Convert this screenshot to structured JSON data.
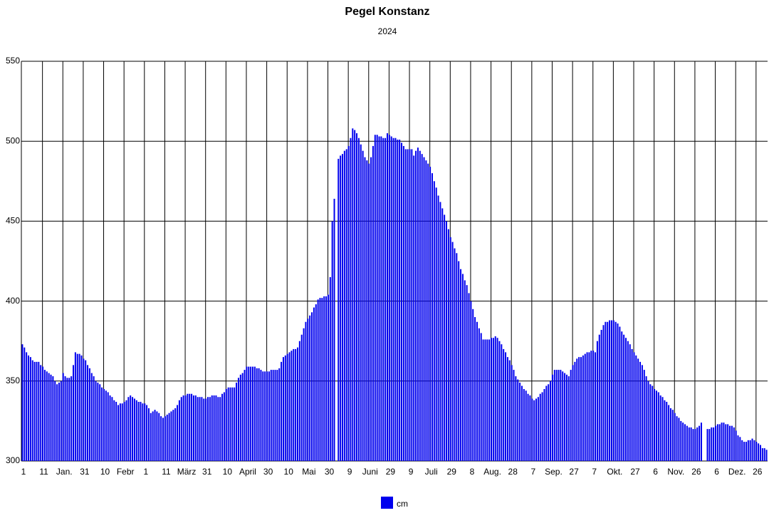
{
  "chart_data": {
    "type": "bar",
    "title": "Pegel Konstanz",
    "subtitle": "2024",
    "categories": [
      "1",
      null,
      null,
      null,
      null,
      null,
      null,
      null,
      null,
      null,
      "11",
      null,
      null,
      null,
      null,
      null,
      null,
      null,
      null,
      null,
      "Jan.",
      null,
      null,
      null,
      null,
      null,
      null,
      null,
      null,
      null,
      "31",
      null,
      null,
      null,
      null,
      null,
      null,
      null,
      null,
      null,
      "10",
      null,
      null,
      null,
      null,
      null,
      null,
      null,
      null,
      null,
      "Febr",
      null,
      null,
      null,
      null,
      null,
      null,
      null,
      null,
      null,
      "1",
      null,
      null,
      null,
      null,
      null,
      null,
      null,
      null,
      null,
      "11",
      null,
      null,
      null,
      null,
      null,
      null,
      null,
      null,
      null,
      "März",
      null,
      null,
      null,
      null,
      null,
      null,
      null,
      null,
      null,
      "31",
      null,
      null,
      null,
      null,
      null,
      null,
      null,
      null,
      null,
      "10",
      null,
      null,
      null,
      null,
      null,
      null,
      null,
      null,
      null,
      "April",
      null,
      null,
      null,
      null,
      null,
      null,
      null,
      null,
      null,
      "30",
      null,
      null,
      null,
      null,
      null,
      null,
      null,
      null,
      null,
      "10",
      null,
      null,
      null,
      null,
      null,
      null,
      null,
      null,
      null,
      "Mai",
      null,
      null,
      null,
      null,
      null,
      null,
      null,
      null,
      null,
      "30",
      null,
      null,
      null,
      null,
      null,
      null,
      null,
      null,
      null,
      "9",
      null,
      null,
      null,
      null,
      null,
      null,
      null,
      null,
      null,
      "Juni",
      null,
      null,
      null,
      null,
      null,
      null,
      null,
      null,
      null,
      "29",
      null,
      null,
      null,
      null,
      null,
      null,
      null,
      null,
      null,
      "9",
      null,
      null,
      null,
      null,
      null,
      null,
      null,
      null,
      null,
      "Juli",
      null,
      null,
      null,
      null,
      null,
      null,
      null,
      null,
      null,
      "29",
      null,
      null,
      null,
      null,
      null,
      null,
      null,
      null,
      null,
      "8",
      null,
      null,
      null,
      null,
      null,
      null,
      null,
      null,
      null,
      "Aug.",
      null,
      null,
      null,
      null,
      null,
      null,
      null,
      null,
      null,
      "28",
      null,
      null,
      null,
      null,
      null,
      null,
      null,
      null,
      null,
      "7",
      null,
      null,
      null,
      null,
      null,
      null,
      null,
      null,
      null,
      "Sep.",
      null,
      null,
      null,
      null,
      null,
      null,
      null,
      null,
      null,
      "27",
      null,
      null,
      null,
      null,
      null,
      null,
      null,
      null,
      null,
      "7",
      null,
      null,
      null,
      null,
      null,
      null,
      null,
      null,
      null,
      "Okt.",
      null,
      null,
      null,
      null,
      null,
      null,
      null,
      null,
      null,
      "27",
      null,
      null,
      null,
      null,
      null,
      null,
      null,
      null,
      null,
      "6",
      null,
      null,
      null,
      null,
      null,
      null,
      null,
      null,
      null,
      "Nov.",
      null,
      null,
      null,
      null,
      null,
      null,
      null,
      null,
      null,
      "26",
      null,
      null,
      null,
      null,
      null,
      null,
      null,
      null,
      null,
      "6",
      null,
      null,
      null,
      null,
      null,
      null,
      null,
      null,
      null,
      "Dez.",
      null,
      null,
      null,
      null,
      null,
      null,
      null,
      null,
      null,
      "26",
      null,
      null,
      null,
      null,
      null
    ],
    "series": [
      {
        "name": "cm",
        "color": "#0000ee",
        "values": [
          373,
          371,
          368,
          366,
          365,
          363,
          362,
          362,
          362,
          360,
          359,
          357,
          356,
          355,
          354,
          353,
          350,
          348,
          349,
          350,
          355,
          353,
          352,
          352,
          353,
          360,
          368,
          367,
          367,
          366,
          364,
          363,
          360,
          358,
          355,
          353,
          350,
          349,
          348,
          346,
          345,
          344,
          343,
          341,
          340,
          338,
          337,
          335,
          336,
          336,
          337,
          338,
          340,
          341,
          340,
          339,
          338,
          337,
          337,
          336,
          336,
          335,
          333,
          330,
          331,
          332,
          331,
          330,
          328,
          327,
          328,
          329,
          330,
          331,
          332,
          333,
          335,
          338,
          340,
          341,
          341,
          342,
          342,
          342,
          341,
          341,
          340,
          340,
          340,
          339,
          339,
          340,
          340,
          341,
          341,
          341,
          340,
          340,
          342,
          343,
          345,
          346,
          346,
          346,
          346,
          349,
          352,
          354,
          355,
          357,
          359,
          359,
          359,
          359,
          359,
          358,
          358,
          357,
          356,
          356,
          356,
          356,
          357,
          357,
          357,
          357,
          358,
          362,
          365,
          366,
          367,
          368,
          369,
          370,
          370,
          371,
          375,
          379,
          383,
          387,
          389,
          391,
          393,
          396,
          398,
          401,
          402,
          402,
          403,
          403,
          404,
          415,
          450,
          464,
          null,
          489,
          491,
          492,
          494,
          495,
          497,
          502,
          508,
          507,
          505,
          502,
          498,
          494,
          490,
          488,
          486,
          490,
          497,
          504,
          504,
          503,
          503,
          502,
          502,
          505,
          504,
          503,
          502,
          502,
          501,
          501,
          499,
          497,
          495,
          495,
          495,
          495,
          491,
          494,
          496,
          494,
          492,
          490,
          488,
          486,
          484,
          480,
          475,
          471,
          466,
          462,
          458,
          454,
          450,
          445,
          440,
          437,
          433,
          430,
          425,
          420,
          417,
          413,
          410,
          405,
          400,
          395,
          390,
          387,
          383,
          380,
          376,
          376,
          376,
          376,
          377,
          377,
          378,
          377,
          375,
          373,
          370,
          368,
          365,
          363,
          360,
          357,
          353,
          351,
          349,
          347,
          345,
          344,
          342,
          341,
          339,
          338,
          339,
          340,
          342,
          343,
          345,
          347,
          348,
          350,
          354,
          357,
          357,
          357,
          357,
          356,
          355,
          354,
          353,
          357,
          360,
          362,
          364,
          365,
          365,
          366,
          367,
          368,
          368,
          369,
          369,
          368,
          375,
          379,
          382,
          385,
          387,
          387,
          388,
          388,
          388,
          387,
          386,
          384,
          381,
          379,
          377,
          375,
          373,
          370,
          368,
          366,
          364,
          362,
          360,
          357,
          353,
          350,
          348,
          347,
          345,
          344,
          343,
          341,
          340,
          338,
          337,
          335,
          333,
          332,
          330,
          328,
          327,
          325,
          324,
          323,
          322,
          321,
          321,
          320,
          320,
          321,
          322,
          324,
          null,
          null,
          320,
          320,
          321,
          321,
          322,
          323,
          323,
          324,
          324,
          323,
          323,
          322,
          322,
          321,
          319,
          316,
          315,
          313,
          312,
          312,
          313,
          313,
          314,
          313,
          312,
          311,
          310,
          308,
          308,
          307
        ]
      }
    ],
    "ylim": [
      300,
      550
    ],
    "yticks": [
      300,
      350,
      400,
      450,
      500,
      550
    ],
    "grid": true
  }
}
